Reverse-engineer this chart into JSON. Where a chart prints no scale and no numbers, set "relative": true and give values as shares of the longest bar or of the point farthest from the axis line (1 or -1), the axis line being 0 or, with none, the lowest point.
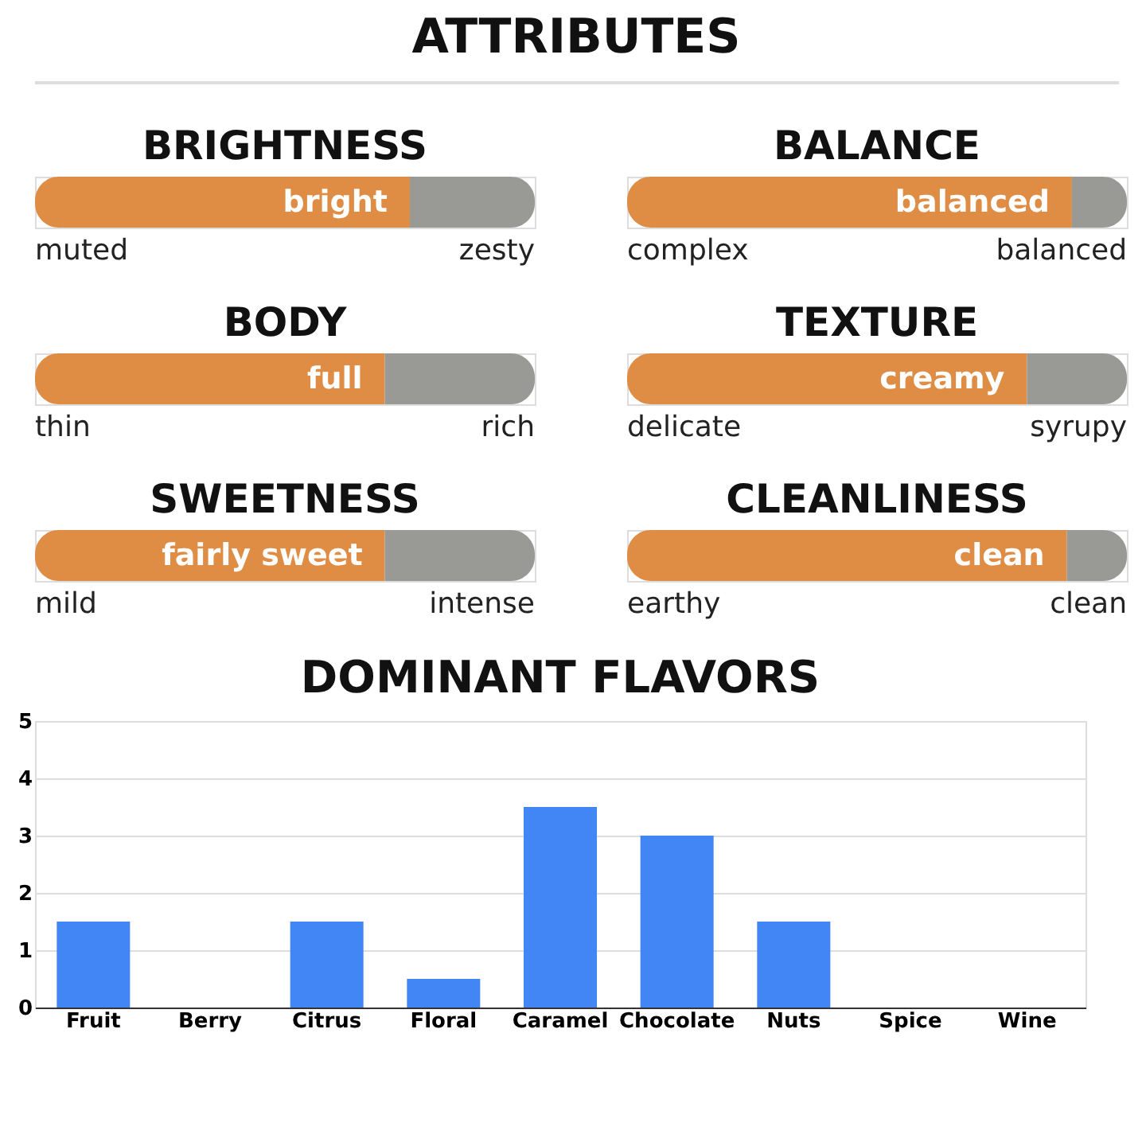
{
  "chart_data": [
    {
      "type": "other",
      "title": "ATTRIBUTES"
    },
    {
      "type": "bar",
      "orientation": "horizontal",
      "stacked": true,
      "relative": true,
      "title": "BRIGHTNESS",
      "categories": [
        null
      ],
      "annotations": [
        {
          "text": "bright",
          "x": 0.75
        },
        "muted",
        "zesty"
      ],
      "series": [
        {
          "color": "#df8c45",
          "values": [
            0.75
          ]
        },
        {
          "color": "#999996",
          "values": [
            0.25
          ]
        }
      ]
    },
    {
      "type": "bar",
      "orientation": "horizontal",
      "stacked": true,
      "relative": true,
      "title": "BALANCE",
      "categories": [
        null
      ],
      "annotations": [
        {
          "text": "balanced",
          "x": 0.89
        },
        "complex",
        "balanced"
      ],
      "series": [
        {
          "color": "#df8c45",
          "values": [
            0.89
          ]
        },
        {
          "color": "#999996",
          "values": [
            0.11
          ]
        }
      ]
    },
    {
      "type": "bar",
      "orientation": "horizontal",
      "stacked": true,
      "relative": true,
      "title": "BODY",
      "categories": [
        null
      ],
      "annotations": [
        {
          "text": "full",
          "x": 0.7
        },
        "thin",
        "rich"
      ],
      "series": [
        {
          "color": "#df8c45",
          "values": [
            0.7
          ]
        },
        {
          "color": "#999996",
          "values": [
            0.3
          ]
        }
      ]
    },
    {
      "type": "bar",
      "orientation": "horizontal",
      "stacked": true,
      "relative": true,
      "title": "TEXTURE",
      "categories": [
        null
      ],
      "annotations": [
        {
          "text": "creamy",
          "x": 0.8
        },
        "delicate",
        "syrupy"
      ],
      "series": [
        {
          "color": "#df8c45",
          "values": [
            0.8
          ]
        },
        {
          "color": "#999996",
          "values": [
            0.2
          ]
        }
      ]
    },
    {
      "type": "bar",
      "orientation": "horizontal",
      "stacked": true,
      "relative": true,
      "title": "SWEETNESS",
      "categories": [
        null
      ],
      "annotations": [
        {
          "text": "fairly sweet",
          "x": 0.7
        },
        "mild",
        "intense"
      ],
      "series": [
        {
          "color": "#df8c45",
          "values": [
            0.7
          ]
        },
        {
          "color": "#999996",
          "values": [
            0.3
          ]
        }
      ]
    },
    {
      "type": "bar",
      "orientation": "horizontal",
      "stacked": true,
      "relative": true,
      "title": "CLEANLINESS",
      "categories": [
        null
      ],
      "annotations": [
        {
          "text": "clean",
          "x": 0.88
        },
        "earthy",
        "clean"
      ],
      "series": [
        {
          "color": "#df8c45",
          "values": [
            0.88
          ]
        },
        {
          "color": "#999996",
          "values": [
            0.12
          ]
        }
      ]
    },
    {
      "type": "bar",
      "title": "DOMINANT FLAVORS",
      "categories": [
        "Fruit",
        "Berry",
        "Citrus",
        "Floral",
        "Caramel",
        "Chocolate",
        "Nuts",
        "Spice",
        "Wine"
      ],
      "values": [
        1.5,
        0,
        1.5,
        0.5,
        3.5,
        3,
        1.5,
        0,
        0
      ],
      "color": "#4285f4",
      "ylim": [
        0,
        5
      ],
      "yticks": [
        0,
        1,
        2,
        3,
        4,
        5
      ],
      "grid": "y"
    }
  ]
}
